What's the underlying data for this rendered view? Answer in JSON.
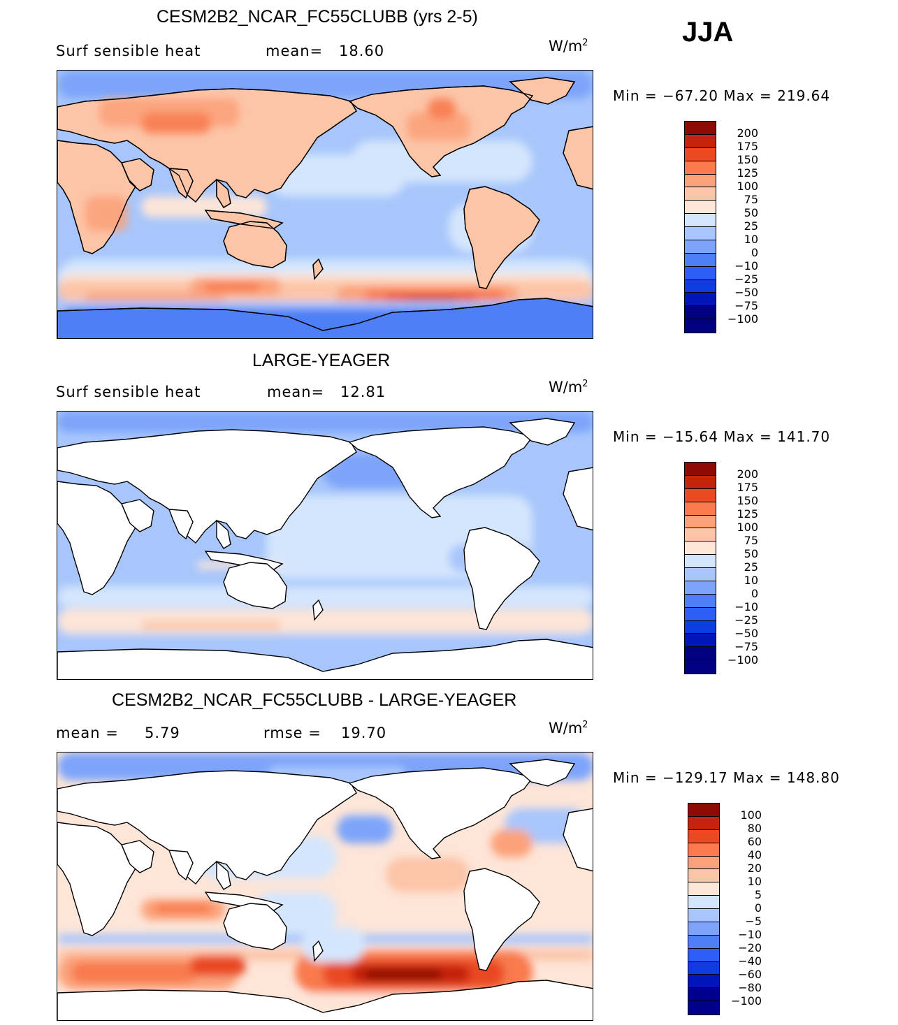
{
  "season": "JJA",
  "colors": {
    "abs": [
      "#000080",
      "#0016b8",
      "#0d3de0",
      "#2b5ff5",
      "#4e7ff7",
      "#7da4fa",
      "#a8c6fb",
      "#d4e6fd",
      "#fde5d8",
      "#fcc5a8",
      "#fba27a",
      "#f87a4d",
      "#e94a22",
      "#c4230c",
      "#8e0a04"
    ],
    "diff": [
      "#00008c",
      "#0016b8",
      "#0d3de0",
      "#2b5ff5",
      "#4e7ff7",
      "#7da4fa",
      "#a8c6fb",
      "#d4e6fd",
      "#fde5d8",
      "#fcc5a8",
      "#fba27a",
      "#f87a4d",
      "#e94a22",
      "#c4230c",
      "#8e0a04"
    ]
  },
  "panels": [
    {
      "title": "CESM2B2_NCAR_FC55CLUBB (yrs 2-5)",
      "left_label": "Surf  sensible  heat",
      "mean_label": "mean=",
      "mean_value": "18.60",
      "units": "W/m",
      "units_sup": "2",
      "min_max": "Min  =  −67.20  Max  =  219.64",
      "colorbar_labels": [
        "200",
        "175",
        "150",
        "125",
        "100",
        "75",
        "50",
        "25",
        "10",
        "0",
        "−10",
        "−25",
        "−50",
        "−75",
        "−100"
      ],
      "map_style": "model"
    },
    {
      "title": "LARGE-YEAGER",
      "left_label": "Surf  sensible  heat",
      "mean_label": "mean=",
      "mean_value": "12.81",
      "units": "W/m",
      "units_sup": "2",
      "min_max": "Min  =  −15.64  Max  =  141.70",
      "colorbar_labels": [
        "200",
        "175",
        "150",
        "125",
        "100",
        "75",
        "50",
        "25",
        "10",
        "0",
        "−10",
        "−25",
        "−50",
        "−75",
        "−100"
      ],
      "map_style": "obs"
    },
    {
      "title": "CESM2B2_NCAR_FC55CLUBB - LARGE-YEAGER",
      "left_label": "mean  =",
      "left_value": "5.79",
      "rmse_label": "rmse  =",
      "rmse_value": "19.70",
      "units": "W/m",
      "units_sup": "2",
      "min_max": "Min  =  −129.17  Max  =  148.80",
      "colorbar_labels": [
        "100",
        "80",
        "60",
        "40",
        "20",
        "10",
        "5",
        "0",
        "−5",
        "−10",
        "−20",
        "−40",
        "−60",
        "−80",
        "−100"
      ],
      "map_style": "diff"
    }
  ]
}
